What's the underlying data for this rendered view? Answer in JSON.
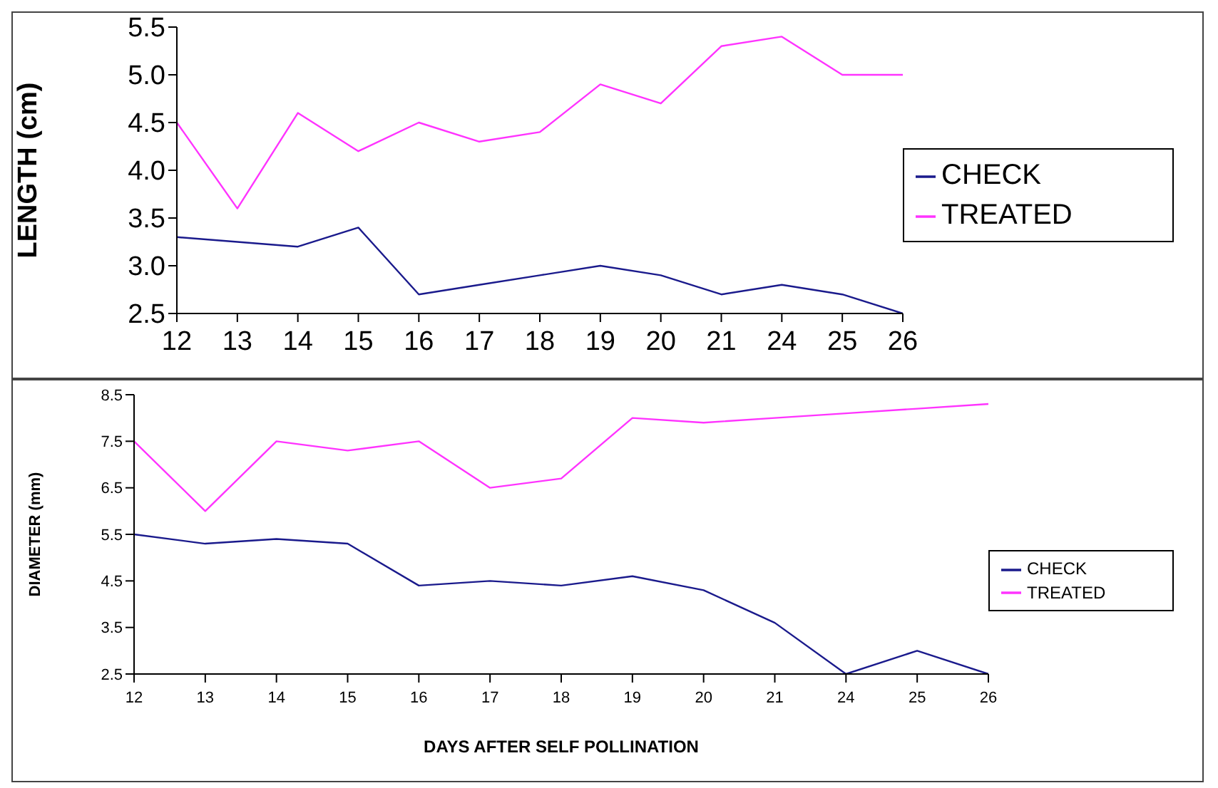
{
  "chart_data": [
    {
      "type": "line",
      "ylabel": "LENGTH (cm)",
      "categories": [
        "12",
        "13",
        "14",
        "15",
        "16",
        "17",
        "18",
        "19",
        "20",
        "21",
        "24",
        "25",
        "26"
      ],
      "ylim": [
        2.5,
        5.5
      ],
      "yticks": [
        {
          "value": 2.5,
          "label": "2.5"
        },
        {
          "value": 3,
          "label": "3.0"
        },
        {
          "value": 3.5,
          "label": "3.5"
        },
        {
          "value": 4,
          "label": "4.0"
        },
        {
          "value": 4.5,
          "label": "4.5"
        },
        {
          "value": 5,
          "label": "5.0"
        },
        {
          "value": 5.5,
          "label": "5.5"
        }
      ],
      "grid": false,
      "legend": "right",
      "marker": "none",
      "series": [
        {
          "name": "CHECK",
          "color": "#1a1a8c",
          "values": [
            3.3,
            3.25,
            3.2,
            3.4,
            2.7,
            2.8,
            2.9,
            3.0,
            2.9,
            2.7,
            2.8,
            2.7,
            2.5
          ]
        },
        {
          "name": "TREATED",
          "color": "#ff33ff",
          "values": [
            4.5,
            3.6,
            4.6,
            4.2,
            4.5,
            4.3,
            4.4,
            4.9,
            4.7,
            5.3,
            5.4,
            5.0,
            5.0
          ]
        }
      ]
    },
    {
      "type": "line",
      "ylabel": "DIAMETER (mm)",
      "xlabel": "DAYS AFTER SELF POLLINATION",
      "categories": [
        "12",
        "13",
        "14",
        "15",
        "16",
        "17",
        "18",
        "19",
        "20",
        "21",
        "24",
        "25",
        "26"
      ],
      "ylim": [
        2.5,
        8.5
      ],
      "yticks": [
        2.5,
        3.5,
        4.5,
        5.5,
        6.5,
        7.5,
        8.5
      ],
      "grid": false,
      "legend": "right",
      "marker": "none",
      "series": [
        {
          "name": "CHECK",
          "color": "#1a1a8c",
          "values": [
            5.5,
            5.3,
            5.4,
            5.3,
            4.4,
            4.5,
            4.4,
            4.6,
            4.3,
            3.6,
            2.5,
            3.0,
            2.5
          ]
        },
        {
          "name": "TREATED",
          "color": "#ff33ff",
          "values": [
            7.5,
            6.0,
            7.5,
            7.3,
            7.5,
            6.5,
            6.7,
            8.0,
            7.9,
            8.0,
            8.1,
            8.2,
            8.3
          ]
        }
      ]
    }
  ]
}
